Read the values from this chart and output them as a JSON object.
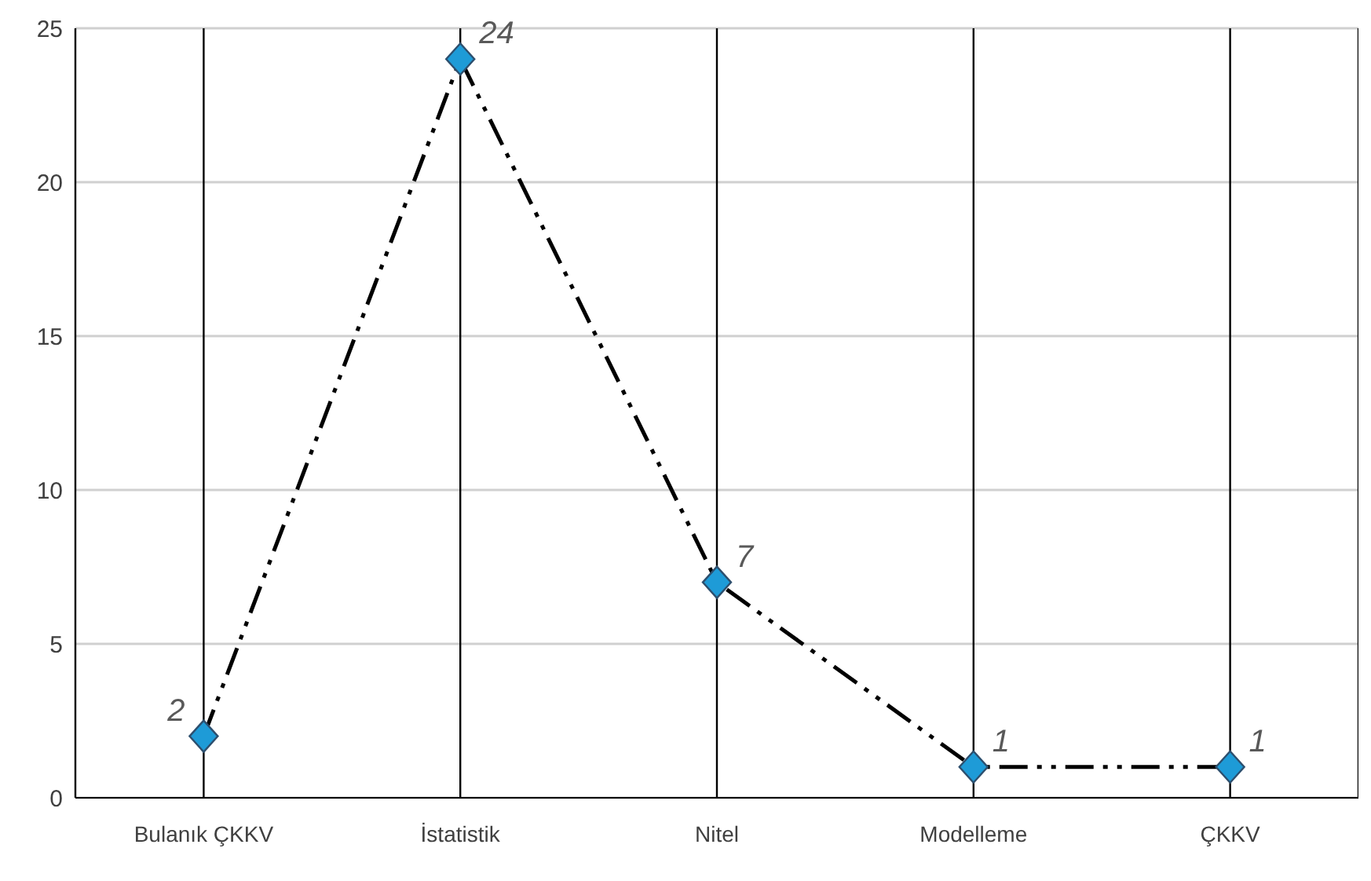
{
  "chart_data": {
    "type": "line",
    "categories": [
      "Bulanık ÇKKV",
      "İstatistik",
      "Nitel",
      "Modelleme",
      "ÇKKV"
    ],
    "series": [
      {
        "color": "#000000",
        "values": [
          2,
          24,
          7,
          1,
          1
        ]
      }
    ],
    "ylim": [
      0,
      25
    ],
    "yticks": [
      0,
      5,
      10,
      15,
      20,
      25
    ],
    "grid": true,
    "marker": "diamond",
    "line_style": "dashed",
    "data_labels": true
  }
}
